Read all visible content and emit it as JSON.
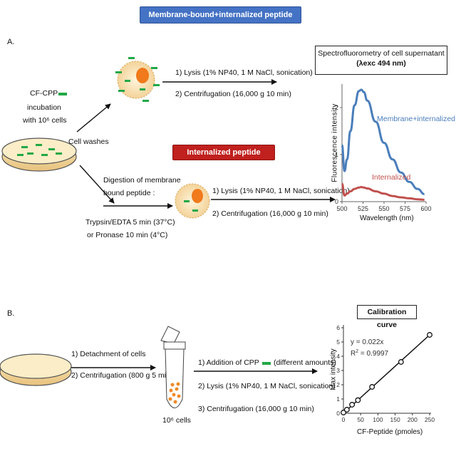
{
  "banners": {
    "membrane": "Membrane-bound+internalized peptide",
    "internalized": "Internalized peptide"
  },
  "panel_a": {
    "label": "A.",
    "cf_cpp": "CF-CPP",
    "incubation": "incubation",
    "with_cells": "with 10⁶ cells",
    "cell_washes": "Cell washes",
    "upper_step1": "1) Lysis (1% NP40, 1 M NaCl, sonication)",
    "upper_step2": "2) Centrifugation (16,000 g 10 min)",
    "digestion1": "Digestion of membrane",
    "digestion2": "bound peptide :",
    "trypsin": "Trypsin/EDTA 5 min (37°C)",
    "pronase": "or Pronase 10 min (4°C)",
    "lower_step1": "1) Lysis (1% NP40, 1 M NaCl, sonication)",
    "lower_step2": "2) Centrifugation (16,000 g 10 min)"
  },
  "spectro": {
    "title_line1": "Spectrofluorometry of cell supernatant",
    "title_line2": "(λexc 494 nm)"
  },
  "panel_b": {
    "label": "B.",
    "step1": "1) Detachment of cells",
    "step2": "2) Centrifugation (800 g 5 min)",
    "cells": "10⁶ cells",
    "addition": "1) Addition of CPP",
    "addition_note": "(different amounts)",
    "lysis": "2) Lysis (1% NP40, 1 M NaCl, sonication)",
    "centrifugation": "3) Centrifugation (16,000 g 10 min)"
  },
  "calibration": {
    "title": "Calibration curve"
  },
  "chart_data": [
    {
      "type": "line",
      "xlabel": "Wavelength (nm)",
      "ylabel": "Fluorescence intensity",
      "xlim": [
        500,
        600
      ],
      "ylim": [
        0,
        2.5
      ],
      "x_ticks": [
        "500",
        "525",
        "550",
        "575",
        "600"
      ],
      "y_ticks": [
        "0",
        "1",
        "2"
      ],
      "x": [
        500,
        503,
        506,
        510,
        515,
        520,
        523,
        526,
        530,
        540,
        550,
        560,
        570,
        580,
        590,
        598
      ],
      "series": [
        {
          "name": "Membrane+internalized",
          "color": "#4a7ebb",
          "values": [
            1.2,
            0.65,
            0.9,
            1.5,
            2.05,
            2.35,
            2.38,
            2.33,
            2.15,
            1.7,
            1.25,
            0.9,
            0.62,
            0.42,
            0.27,
            0.16
          ]
        },
        {
          "name": "Internalized",
          "color": "#c0504d",
          "values": [
            0.38,
            0.13,
            0.17,
            0.22,
            0.27,
            0.3,
            0.31,
            0.3,
            0.28,
            0.22,
            0.17,
            0.12,
            0.09,
            0.07,
            0.05,
            0.04
          ]
        }
      ]
    },
    {
      "type": "scatter",
      "title": "Calibration curve",
      "xlabel": "CF-Peptide (pmoles)",
      "ylabel": "Max intensity",
      "xlim": [
        0,
        250
      ],
      "ylim": [
        0,
        6
      ],
      "x_ticks": [
        "0",
        "50",
        "100",
        "150",
        "200",
        "250"
      ],
      "y_ticks": [
        "0",
        "1",
        "2",
        "3",
        "4",
        "5",
        "6"
      ],
      "equation": "y = 0.022x",
      "r2_prefix": "R",
      "r2_sup": "2",
      "r2_value": " = 0.9997",
      "slope": 0.022,
      "fit_x": [
        0,
        250
      ],
      "points": [
        {
          "x": 0,
          "y": 0.05
        },
        {
          "x": 10,
          "y": 0.25
        },
        {
          "x": 25,
          "y": 0.6
        },
        {
          "x": 42,
          "y": 0.92
        },
        {
          "x": 83,
          "y": 1.85
        },
        {
          "x": 167,
          "y": 3.6
        },
        {
          "x": 250,
          "y": 5.5
        }
      ]
    }
  ]
}
